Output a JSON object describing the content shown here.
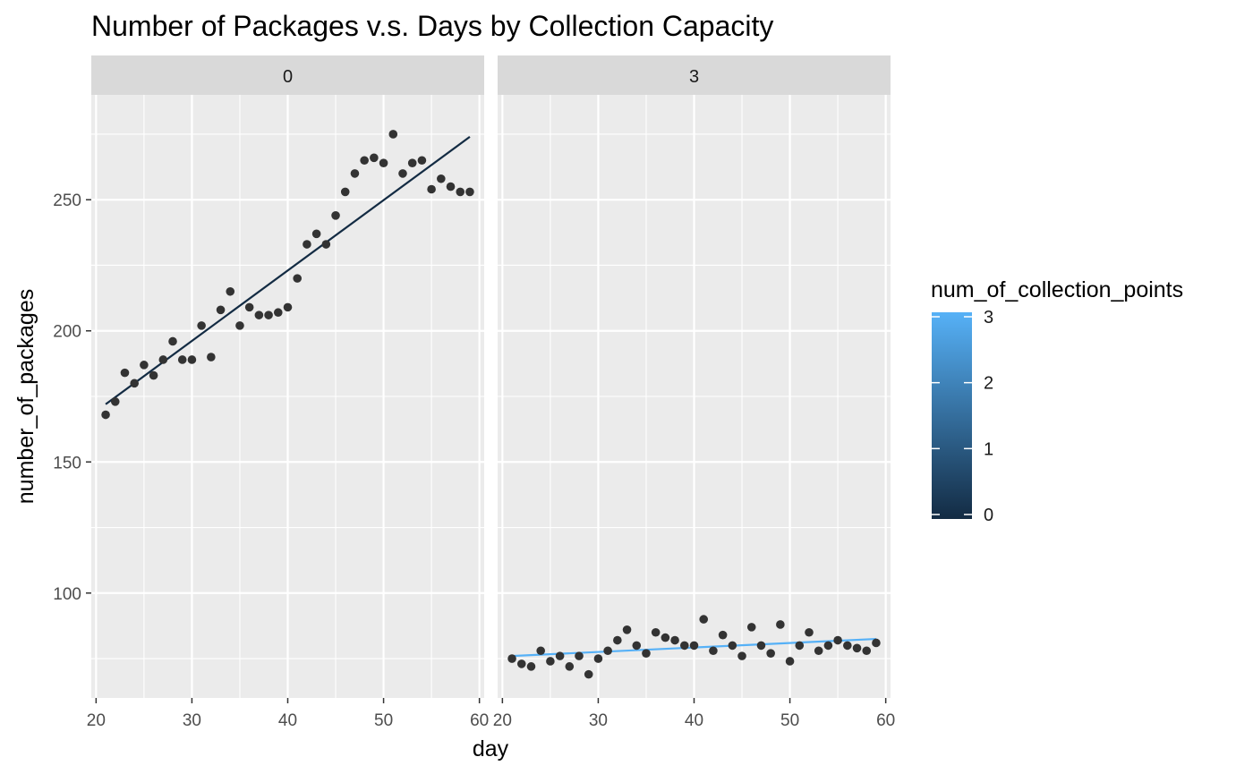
{
  "chart_data": {
    "type": "scatter",
    "title": "Number of Packages v.s. Days by Collection Capacity",
    "xlabel": "day",
    "ylabel": "number_of_packages",
    "xlim": [
      19.5,
      60.5
    ],
    "ylim": [
      60,
      290
    ],
    "x_ticks": [
      20,
      30,
      40,
      50,
      60
    ],
    "y_ticks": [
      100,
      150,
      200,
      250
    ],
    "grid": true,
    "legend": {
      "title": "num_of_collection_points",
      "position": "right",
      "ticks": [
        0,
        1,
        2,
        3
      ],
      "range": [
        0,
        3
      ],
      "color_low": "#132B43",
      "color_high": "#56B1F7"
    },
    "point_color": "#333333",
    "panel_background": "#EBEBEB",
    "strip_background": "#D9D9D9",
    "facets": [
      {
        "label": "0",
        "collection_points": 0,
        "line_color": "#132B43",
        "trend": {
          "x": [
            21,
            59
          ],
          "y": [
            172,
            274
          ]
        },
        "points": {
          "x": [
            21,
            22,
            23,
            24,
            25,
            26,
            27,
            28,
            29,
            30,
            31,
            32,
            33,
            34,
            35,
            36,
            37,
            38,
            39,
            40,
            41,
            42,
            43,
            44,
            45,
            46,
            47,
            48,
            49,
            50,
            51,
            52,
            53,
            54,
            55,
            56,
            57,
            58,
            59
          ],
          "y": [
            168,
            173,
            184,
            180,
            187,
            183,
            189,
            196,
            189,
            189,
            202,
            190,
            208,
            215,
            202,
            209,
            206,
            206,
            207,
            209,
            220,
            233,
            237,
            233,
            244,
            253,
            260,
            265,
            266,
            264,
            275,
            260,
            264,
            265,
            254,
            258,
            255,
            253,
            253
          ]
        }
      },
      {
        "label": "3",
        "collection_points": 3,
        "line_color": "#56B1F7",
        "trend": {
          "x": [
            21,
            59
          ],
          "y": [
            76,
            82.5
          ]
        },
        "points": {
          "x": [
            21,
            22,
            23,
            24,
            25,
            26,
            27,
            28,
            29,
            30,
            31,
            32,
            33,
            34,
            35,
            36,
            37,
            38,
            39,
            40,
            41,
            42,
            43,
            44,
            45,
            46,
            47,
            48,
            49,
            50,
            51,
            52,
            53,
            54,
            55,
            56,
            57,
            58,
            59
          ],
          "y": [
            75,
            73,
            72,
            78,
            74,
            76,
            72,
            76,
            69,
            75,
            78,
            82,
            86,
            80,
            77,
            85,
            83,
            82,
            80,
            80,
            90,
            78,
            84,
            80,
            76,
            87,
            80,
            77,
            88,
            74,
            80,
            85,
            78,
            80,
            82,
            80,
            79,
            78,
            81
          ]
        }
      }
    ]
  }
}
